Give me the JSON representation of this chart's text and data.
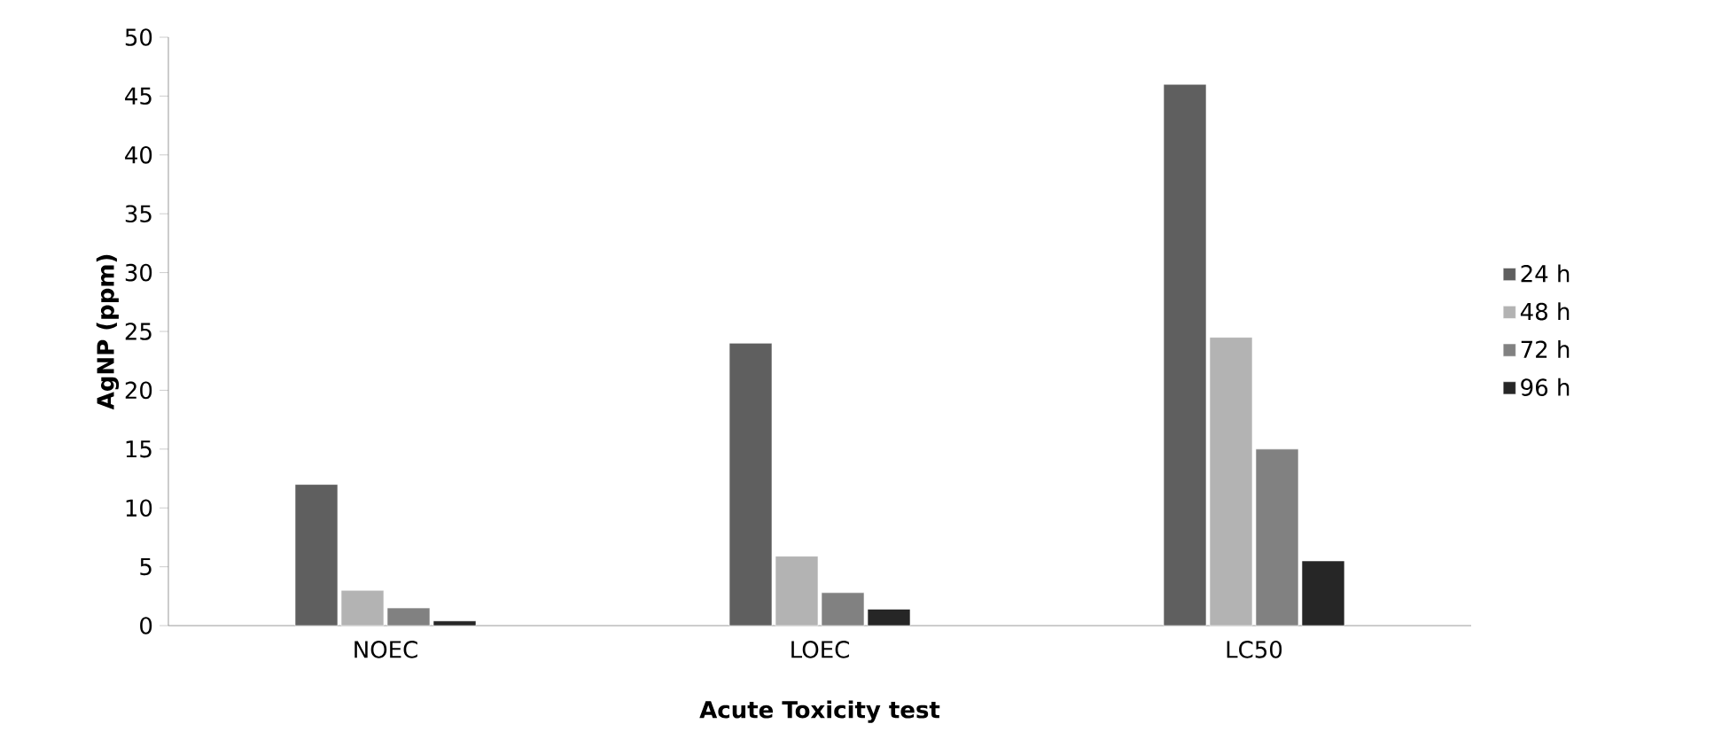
{
  "chart_data": {
    "type": "bar",
    "xlabel": "Acute Toxicity test",
    "ylabel": "AgNP (ppm)",
    "categories": [
      "NOEC",
      "LOEC",
      "LC50"
    ],
    "series": [
      {
        "name": "24 h",
        "color": "#5f5f5f",
        "values": [
          12,
          24,
          46
        ]
      },
      {
        "name": "48 h",
        "color": "#b3b3b3",
        "values": [
          3,
          5.9,
          24.5
        ]
      },
      {
        "name": "72 h",
        "color": "#818181",
        "values": [
          1.5,
          2.8,
          15
        ]
      },
      {
        "name": "96 h",
        "color": "#262626",
        "values": [
          0.4,
          1.4,
          5.5
        ]
      }
    ],
    "ylim": [
      0,
      50
    ],
    "yticks": [
      0,
      5,
      10,
      15,
      20,
      25,
      30,
      35,
      40,
      45,
      50
    ],
    "grid": false,
    "legend": "right"
  }
}
